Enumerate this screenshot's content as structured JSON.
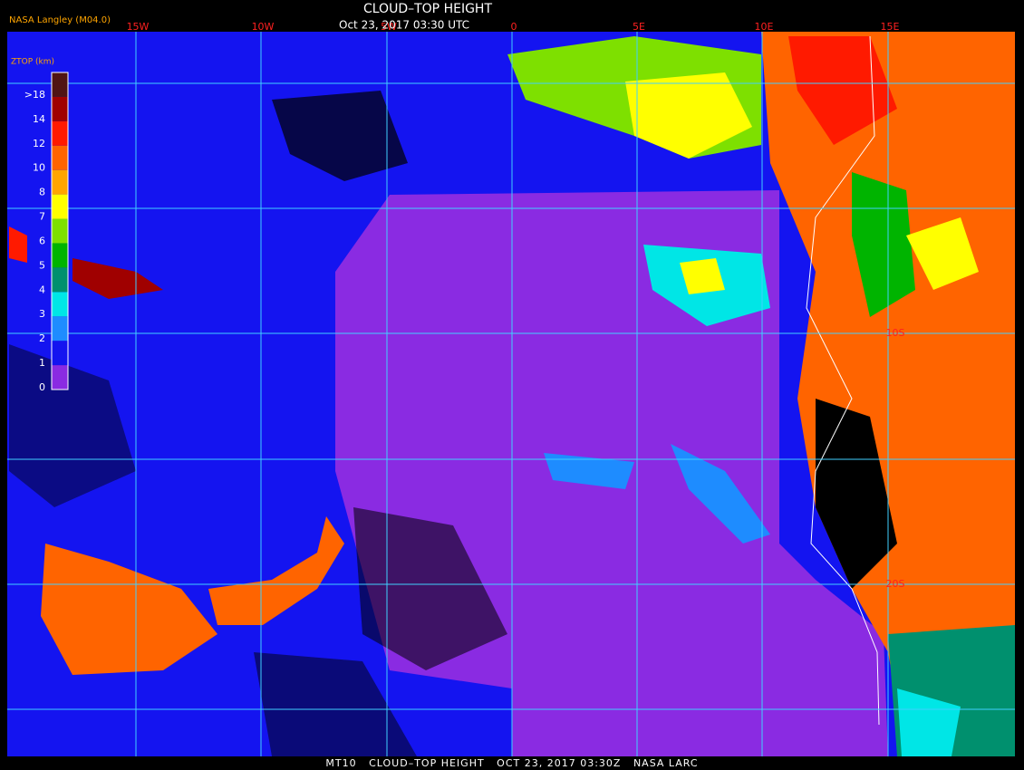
{
  "header": {
    "title": "CLOUD–TOP HEIGHT",
    "subtitle": "Oct 23, 2017 03:30 UTC",
    "credit": "NASA Langley (M04.0)"
  },
  "legend": {
    "title": "ZTOP (km)",
    "levels": [
      {
        "label": "0",
        "color": "#8a2be2"
      },
      {
        "label": "1",
        "color": "#1414f0"
      },
      {
        "label": "2",
        "color": "#1e8cff"
      },
      {
        "label": "3",
        "color": "#00e6e6"
      },
      {
        "label": "4",
        "color": "#00906e"
      },
      {
        "label": "5",
        "color": "#00b400"
      },
      {
        "label": "6",
        "color": "#7ee000"
      },
      {
        "label": "7",
        "color": "#ffff00"
      },
      {
        "label": "8",
        "color": "#ffa500"
      },
      {
        "label": "10",
        "color": "#ff6400"
      },
      {
        "label": "12",
        "color": "#ff1a00"
      },
      {
        "label": "14",
        "color": "#a00000"
      },
      {
        "label": ">18",
        "color": "#501414"
      }
    ]
  },
  "grid": {
    "longitudes": [
      "15W",
      "10W",
      "5W",
      "0",
      "5E",
      "10E",
      "15E"
    ],
    "latitudes": [
      "10S",
      "20S"
    ]
  },
  "footer": "MT10   CLOUD–TOP HEIGHT   OCT 23, 2017 03:30Z   NASA LARC"
}
